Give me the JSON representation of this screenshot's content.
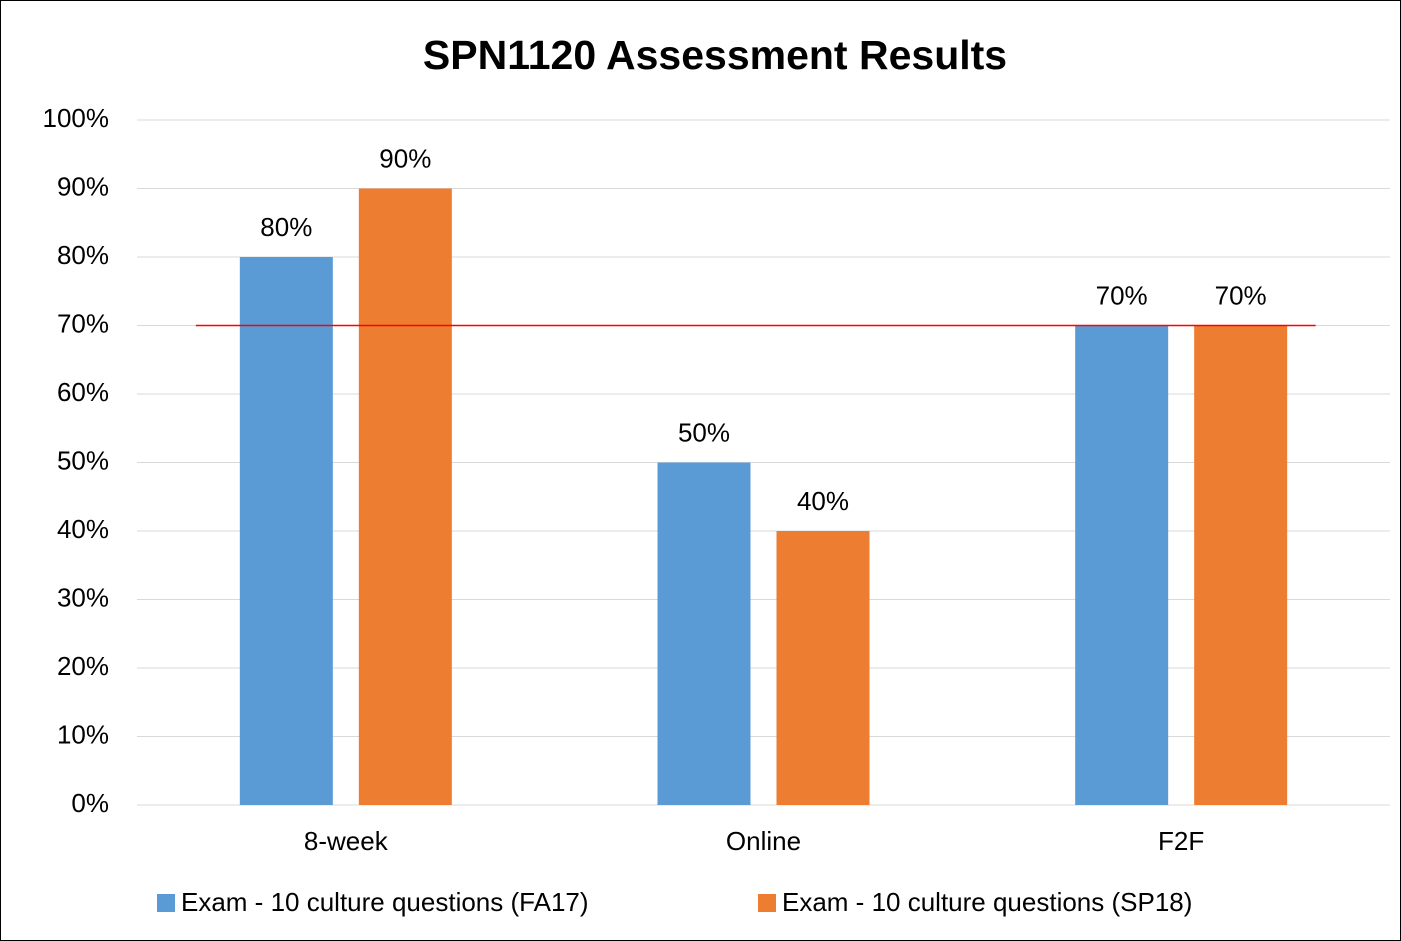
{
  "chart_data": {
    "type": "bar",
    "title": "SPN1120 Assessment Results",
    "categories": [
      "8-week",
      "Online",
      "F2F"
    ],
    "series": [
      {
        "name": "Exam - 10 culture questions (FA17)",
        "color": "#5b9bd5",
        "values": [
          80,
          50,
          70
        ],
        "value_labels": [
          "80%",
          "50%",
          "70%"
        ]
      },
      {
        "name": "Exam - 10 culture questions (SP18)",
        "color": "#ed7d31",
        "values": [
          90,
          40,
          70
        ],
        "value_labels": [
          "90%",
          "40%",
          "70%"
        ]
      }
    ],
    "ylim": [
      0,
      100
    ],
    "yticks": [
      {
        "value": 0,
        "label": "0%"
      },
      {
        "value": 10,
        "label": "10%"
      },
      {
        "value": 20,
        "label": "20%"
      },
      {
        "value": 30,
        "label": "30%"
      },
      {
        "value": 40,
        "label": "40%"
      },
      {
        "value": 50,
        "label": "50%"
      },
      {
        "value": 60,
        "label": "60%"
      },
      {
        "value": 70,
        "label": "70%"
      },
      {
        "value": 80,
        "label": "80%"
      },
      {
        "value": 90,
        "label": "90%"
      },
      {
        "value": 100,
        "label": "100%"
      }
    ],
    "grid": true,
    "reference_line": {
      "value": 70,
      "color": "#ff0000"
    },
    "legend": "bottom"
  }
}
